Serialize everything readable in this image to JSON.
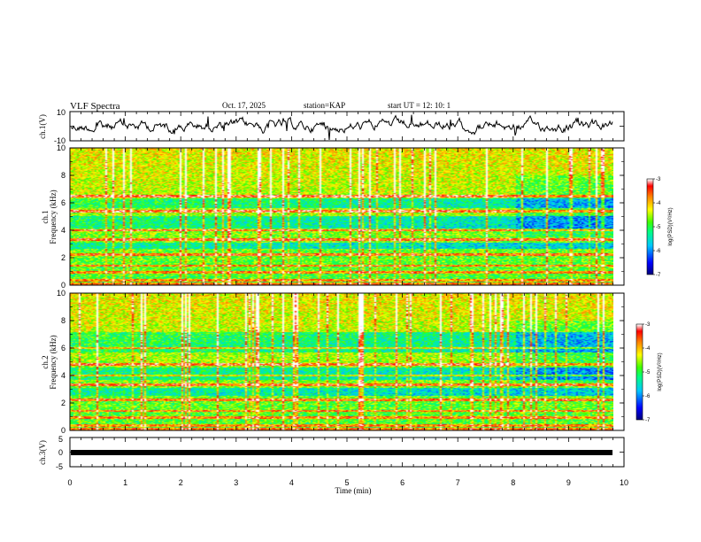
{
  "header": {
    "title": "VLF Spectra",
    "date": "Oct. 17, 2025",
    "station": "station=KAP",
    "start_ut": "start UT =  12: 10: 1"
  },
  "chart_data": [
    {
      "type": "line",
      "name": "ch1-waveform",
      "ylabel": "ch.1(V)",
      "ylim": [
        -10,
        10
      ],
      "ytick_labels": [
        "10",
        "-10"
      ],
      "xlim": [
        0,
        10
      ]
    },
    {
      "type": "heatmap",
      "name": "ch1-spectrogram",
      "ylabel": "ch.1 Frequency (kHz)",
      "ylabel_line1": "ch.1",
      "ylabel_line2": "Frequency (kHz)",
      "ylim": [
        0,
        10
      ],
      "ytick_labels": [
        "0",
        "2",
        "4",
        "6",
        "8",
        "10"
      ],
      "xlim": [
        0,
        9.8
      ],
      "colorbar": {
        "label": "log(PSD)(V²/Hz)",
        "range": [
          -7,
          -3
        ],
        "tick_labels": [
          "-3",
          "-4",
          "-5",
          "-6",
          "-7"
        ],
        "colors": [
          "#000080",
          "#0000ff",
          "#00c8ff",
          "#00ff80",
          "#40ff00",
          "#ffff00",
          "#ff8000",
          "#ff0000",
          "#ffffff"
        ]
      },
      "bands_khz": [
        0.3,
        0.9,
        1.4,
        2.2,
        3.3,
        4.0,
        5.4,
        6.5
      ],
      "quiet_bands_khz": [
        [
          2.6,
          3.1
        ],
        [
          4.1,
          5.0
        ],
        [
          5.6,
          6.3
        ]
      ]
    },
    {
      "type": "heatmap",
      "name": "ch2-spectrogram",
      "ylabel": "ch.2 Frequency (kHz)",
      "ylabel_line1": "ch.2",
      "ylabel_line2": "Frequency (kHz)",
      "ylim": [
        0,
        10
      ],
      "ytick_labels": [
        "0",
        "2",
        "4",
        "6",
        "8",
        "10"
      ],
      "xlim": [
        0,
        9.8
      ],
      "colorbar": {
        "label": "log(PSD)(V²/Hz)",
        "range": [
          -7,
          -3
        ],
        "tick_labels": [
          "-3",
          "-4",
          "-5",
          "-6",
          "-7"
        ]
      },
      "bands_khz": [
        0.3,
        0.9,
        1.4,
        2.2,
        3.3,
        4.0,
        4.8,
        6.0
      ],
      "quiet_bands_khz": [
        [
          2.5,
          3.1
        ],
        [
          3.7,
          4.6
        ],
        [
          5.7,
          7.2
        ]
      ]
    },
    {
      "type": "line",
      "name": "ch3-waveform",
      "ylabel": "ch.3(V)",
      "ylim": [
        -5,
        5
      ],
      "ytick_labels": [
        "5",
        "0",
        "-5"
      ],
      "xlim": [
        0,
        10
      ],
      "xlabel": "Time (min)",
      "xtick_labels": [
        "0",
        "1",
        "2",
        "3",
        "4",
        "5",
        "6",
        "7",
        "8",
        "9",
        "10"
      ]
    }
  ]
}
